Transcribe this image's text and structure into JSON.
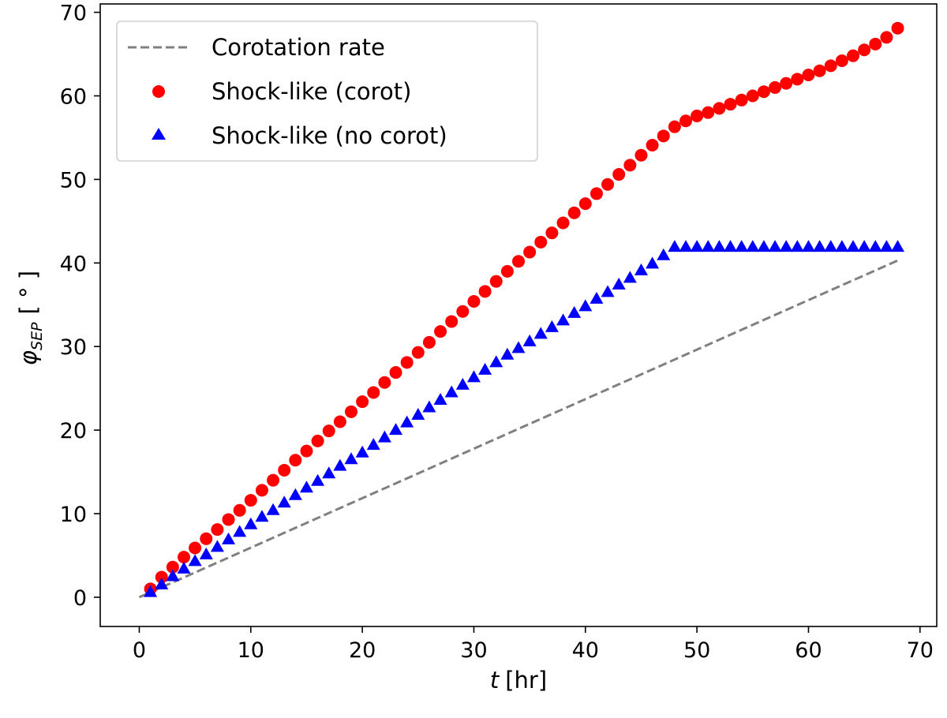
{
  "chart_data": {
    "type": "scatter",
    "title": "",
    "xlabel": {
      "symbol": "t",
      "unit": "[hr]"
    },
    "ylabel": {
      "symbol": "φ",
      "subscript": "SEP",
      "unit": "[ ° ]"
    },
    "xlim": [
      -3.5,
      71.5
    ],
    "ylim": [
      -3.5,
      71
    ],
    "xticks": [
      0,
      10,
      20,
      30,
      40,
      50,
      60,
      70
    ],
    "yticks": [
      0,
      10,
      20,
      30,
      40,
      50,
      60,
      70
    ],
    "grid": false,
    "legend": {
      "position": "top-left",
      "entries": [
        "Corotation rate",
        "Shock-like (corot)",
        "Shock-like (no corot)"
      ]
    },
    "series": [
      {
        "name": "Corotation rate",
        "kind": "line",
        "style": "dashed",
        "color": "#808080",
        "x": [
          0,
          68
        ],
        "y": [
          0,
          40.3
        ]
      },
      {
        "name": "Shock-like (corot)",
        "kind": "scatter",
        "marker": "circle",
        "color": "#ff0000",
        "x": [
          1,
          2,
          3,
          4,
          5,
          6,
          7,
          8,
          9,
          10,
          11,
          12,
          13,
          14,
          15,
          16,
          17,
          18,
          19,
          20,
          21,
          22,
          23,
          24,
          25,
          26,
          27,
          28,
          29,
          30,
          31,
          32,
          33,
          34,
          35,
          36,
          37,
          38,
          39,
          40,
          41,
          42,
          43,
          44,
          45,
          46,
          47,
          48,
          49,
          50,
          51,
          52,
          53,
          54,
          55,
          56,
          57,
          58,
          59,
          60,
          61,
          62,
          63,
          64,
          65,
          66,
          67,
          68
        ],
        "y": [
          1.0,
          2.4,
          3.6,
          4.8,
          5.9,
          7.0,
          8.1,
          9.3,
          10.4,
          11.6,
          12.8,
          14.0,
          15.2,
          16.4,
          17.5,
          18.7,
          19.9,
          21.0,
          22.2,
          23.4,
          24.5,
          25.7,
          26.9,
          28.1,
          29.3,
          30.5,
          31.8,
          33.0,
          34.2,
          35.4,
          36.6,
          37.8,
          39.0,
          40.2,
          41.3,
          42.5,
          43.6,
          44.8,
          46.0,
          47.1,
          48.3,
          49.4,
          50.6,
          51.7,
          52.9,
          54.1,
          55.2,
          56.3,
          57.0,
          57.6,
          58.0,
          58.5,
          59.0,
          59.5,
          60.0,
          60.5,
          61.0,
          61.5,
          62.0,
          62.5,
          63.0,
          63.6,
          64.2,
          64.8,
          65.5,
          66.2,
          67.0,
          68.1
        ]
      },
      {
        "name": "Shock-like (no corot)",
        "kind": "scatter",
        "marker": "triangle",
        "color": "#0000ff",
        "x": [
          1,
          2,
          3,
          4,
          5,
          6,
          7,
          8,
          9,
          10,
          11,
          12,
          13,
          14,
          15,
          16,
          17,
          18,
          19,
          20,
          21,
          22,
          23,
          24,
          25,
          26,
          27,
          28,
          29,
          30,
          31,
          32,
          33,
          34,
          35,
          36,
          37,
          38,
          39,
          40,
          41,
          42,
          43,
          44,
          45,
          46,
          47,
          48,
          49,
          50,
          51,
          52,
          53,
          54,
          55,
          56,
          57,
          58,
          59,
          60,
          61,
          62,
          63,
          64,
          65,
          66,
          67,
          68
        ],
        "y": [
          0.6,
          1.5,
          2.5,
          3.4,
          4.3,
          5.1,
          6.0,
          6.9,
          7.8,
          8.7,
          9.6,
          10.4,
          11.3,
          12.2,
          13.1,
          13.9,
          14.8,
          15.7,
          16.5,
          17.3,
          18.2,
          19.1,
          20.0,
          20.9,
          21.8,
          22.7,
          23.6,
          24.5,
          25.4,
          26.3,
          27.2,
          28.1,
          29.0,
          29.8,
          30.6,
          31.5,
          32.3,
          33.1,
          34.0,
          34.8,
          35.7,
          36.5,
          37.4,
          38.2,
          39.1,
          39.9,
          40.9,
          41.9,
          41.9,
          41.9,
          41.9,
          41.9,
          41.9,
          41.9,
          41.9,
          41.9,
          41.9,
          41.9,
          41.9,
          41.9,
          41.9,
          41.9,
          41.9,
          41.9,
          41.9,
          41.9,
          41.9,
          41.9
        ]
      }
    ]
  }
}
